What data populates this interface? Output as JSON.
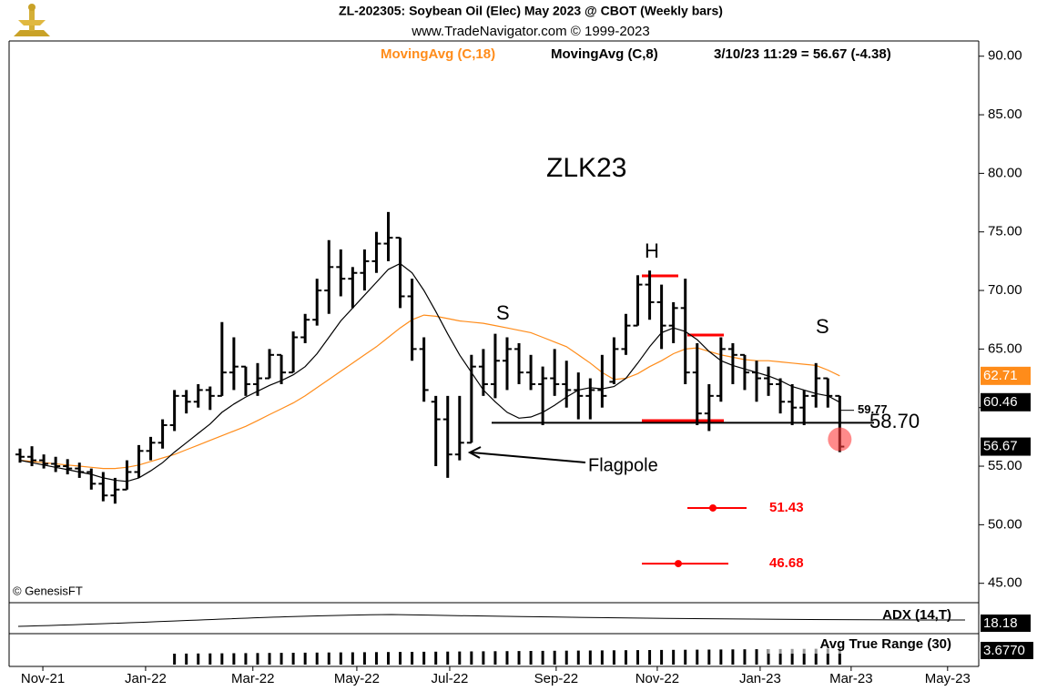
{
  "chart_data": {
    "type": "ohlc",
    "title": "ZL-202305:  Soybean Oil (Elec) May 2023 @ CBOT  (Weekly bars)",
    "subtitle": "www.TradeNavigator.com © 1999-2023",
    "readout": "3/10/23 11:29 = 56.67 (-4.38)",
    "symbol": "ZLK23",
    "copyright": "© GenesisFT",
    "annotations": [
      "H",
      "S",
      "S",
      "Flagpole"
    ],
    "open": [
      56,
      55.8,
      55.5,
      55.2,
      55,
      54.8,
      54.5,
      53.5,
      52.5,
      53,
      54.5,
      56.3,
      57,
      58.5,
      61,
      60.5,
      61.5,
      61,
      63,
      63.5,
      62,
      62.5,
      64.5,
      63,
      66,
      67.5,
      70,
      72,
      71,
      71.5,
      72.5,
      74,
      74.5,
      69.5,
      65,
      60.5,
      59,
      56,
      57,
      63.5,
      62,
      64,
      65,
      63,
      62,
      62.5,
      62,
      61.5,
      61,
      61.5,
      62.2,
      65,
      67,
      70.5,
      69,
      67,
      68.5,
      63,
      59.5,
      61,
      65,
      64.5,
      63,
      62.5,
      62,
      60.5,
      60,
      61,
      62.5,
      61
    ],
    "high": [
      56.5,
      56.7,
      56,
      55.8,
      55.6,
      55.3,
      54.8,
      54.5,
      54,
      55.5,
      56.8,
      57.5,
      59,
      61.5,
      61.5,
      62,
      61.8,
      67.3,
      66,
      63.5,
      63.8,
      65,
      64.5,
      66.5,
      68,
      71,
      74.3,
      73.5,
      72,
      73.5,
      75,
      76.7,
      74.5,
      71,
      66,
      61,
      61,
      61,
      64.5,
      65,
      66.3,
      66,
      65.5,
      64.5,
      63.5,
      65,
      64,
      63,
      62.5,
      64.5,
      66,
      68,
      71.3,
      71.7,
      70.5,
      69,
      71,
      65.5,
      62,
      66,
      65.5,
      64.5,
      64,
      63.5,
      62.5,
      62,
      61.5,
      63.8,
      62.5,
      61
    ],
    "low": [
      55.3,
      55,
      54.8,
      54.5,
      54.3,
      54,
      53,
      52,
      51.8,
      53,
      54,
      55.5,
      56.5,
      58,
      59.5,
      60,
      59.8,
      61,
      61.5,
      61,
      61,
      62.5,
      62,
      63,
      65.5,
      67,
      68,
      69.5,
      68.5,
      70,
      71.5,
      72.5,
      68.5,
      64,
      60.5,
      55,
      54,
      55.5,
      57,
      61,
      60.8,
      61.5,
      62,
      61.5,
      58.5,
      61,
      60,
      59,
      59,
      60,
      62,
      64.5,
      67,
      67.5,
      65,
      65.5,
      62,
      58.5,
      58,
      60.5,
      62,
      61.5,
      60.5,
      61,
      59.5,
      58.5,
      58.5,
      60,
      60,
      56.2
    ],
    "close": [
      55.8,
      55.5,
      55.2,
      55,
      54.8,
      54.5,
      53.5,
      52.5,
      53,
      54.5,
      56.3,
      57,
      58.5,
      61,
      60.5,
      61.5,
      61,
      63,
      63.5,
      62,
      62.5,
      64.5,
      63,
      66,
      67.5,
      70,
      72,
      71,
      71.5,
      72.5,
      74,
      74.5,
      69.5,
      65,
      61.5,
      59,
      56,
      57,
      63.5,
      62,
      64,
      65,
      63,
      62,
      62.5,
      62,
      61.5,
      61,
      61.5,
      61,
      65,
      67,
      70.5,
      69,
      67,
      68.5,
      63,
      59.5,
      61,
      65,
      64.5,
      63,
      62.5,
      62,
      60.5,
      60,
      61,
      62.5,
      61,
      56.67
    ],
    "series": [
      {
        "name": "MovingAvg (C,18)",
        "color": "#ff8c1a",
        "values": [
          55.5,
          55.4,
          55.3,
          55.2,
          55.1,
          55.0,
          54.9,
          54.8,
          54.8,
          54.9,
          55.1,
          55.4,
          55.7,
          56.0,
          56.4,
          56.8,
          57.2,
          57.6,
          58.0,
          58.4,
          58.9,
          59.4,
          59.9,
          60.4,
          61.0,
          61.7,
          62.4,
          63.1,
          63.8,
          64.5,
          65.2,
          66.0,
          66.8,
          67.5,
          67.9,
          67.8,
          67.6,
          67.4,
          67.3,
          67.2,
          67.0,
          66.8,
          66.6,
          66.4,
          66.0,
          65.6,
          65.2,
          64.5,
          63.8,
          63.0,
          62.4,
          62.5,
          62.9,
          63.5,
          64.0,
          64.6,
          65.0,
          65.1,
          64.8,
          64.5,
          64.3,
          64.1,
          64.0,
          64.0,
          63.9,
          63.8,
          63.7,
          63.6,
          63.2,
          62.71
        ]
      },
      {
        "name": "MovingAvg (C,8)",
        "color": "#000000",
        "values": [
          55.5,
          55.3,
          55.1,
          54.9,
          54.7,
          54.5,
          54.3,
          54.0,
          53.8,
          53.7,
          54.0,
          54.6,
          55.3,
          56.2,
          57.0,
          57.8,
          58.6,
          59.6,
          60.3,
          60.9,
          61.4,
          61.9,
          62.3,
          62.8,
          63.5,
          64.6,
          66.0,
          67.4,
          68.5,
          69.6,
          70.7,
          71.8,
          72.3,
          71.5,
          70.0,
          68.2,
          66.3,
          64.5,
          63.0,
          61.5,
          60.5,
          59.6,
          59.1,
          59.2,
          59.6,
          60.2,
          60.9,
          61.5,
          61.7,
          61.6,
          61.8,
          62.5,
          63.8,
          65.2,
          66.4,
          66.8,
          66.5,
          65.8,
          64.8,
          64.0,
          63.6,
          63.3,
          63.0,
          62.7,
          62.3,
          61.8,
          61.5,
          61.2,
          61.0,
          60.46
        ]
      }
    ],
    "neckline": {
      "value": 58.7,
      "label": "58.70"
    },
    "marker": 59.77,
    "targets": [
      51.43,
      46.68
    ],
    "ylim": [
      43.5,
      91.3
    ],
    "yticks": [
      {
        "value": 90,
        "label": "90.00"
      },
      {
        "value": 85,
        "label": "85.00"
      },
      {
        "value": 80,
        "label": "80.00"
      },
      {
        "value": 75,
        "label": "75.00"
      },
      {
        "value": 70,
        "label": "70.00"
      },
      {
        "value": 65,
        "label": "65.00"
      },
      {
        "value": 60,
        "label": "60.00"
      },
      {
        "value": 55,
        "label": "55.00"
      },
      {
        "value": 50,
        "label": "50.00"
      },
      {
        "value": 45,
        "label": "45.00"
      }
    ],
    "xlim": [
      -0.92,
      80.7
    ],
    "xticks": [
      {
        "value": 1.92,
        "label": "Nov-21"
      },
      {
        "value": 10.57,
        "label": "Jan-22"
      },
      {
        "value": 19.6,
        "label": "Mar-22"
      },
      {
        "value": 28.35,
        "label": "May-22"
      },
      {
        "value": 36.17,
        "label": "Jul-22"
      },
      {
        "value": 45.13,
        "label": "Sep-22"
      },
      {
        "value": 53.64,
        "label": "Nov-22"
      },
      {
        "value": 62.3,
        "label": "Jan-23"
      },
      {
        "value": 69.96,
        "label": "Mar-23"
      },
      {
        "value": 78.08,
        "label": "May-23"
      }
    ],
    "adx": {
      "label": "ADX (14,T)",
      "last_value": 18.18
    },
    "atr": {
      "label": "Avg True Range (30)",
      "last_value": 3.677,
      "last_value_label": "3.6770"
    }
  }
}
